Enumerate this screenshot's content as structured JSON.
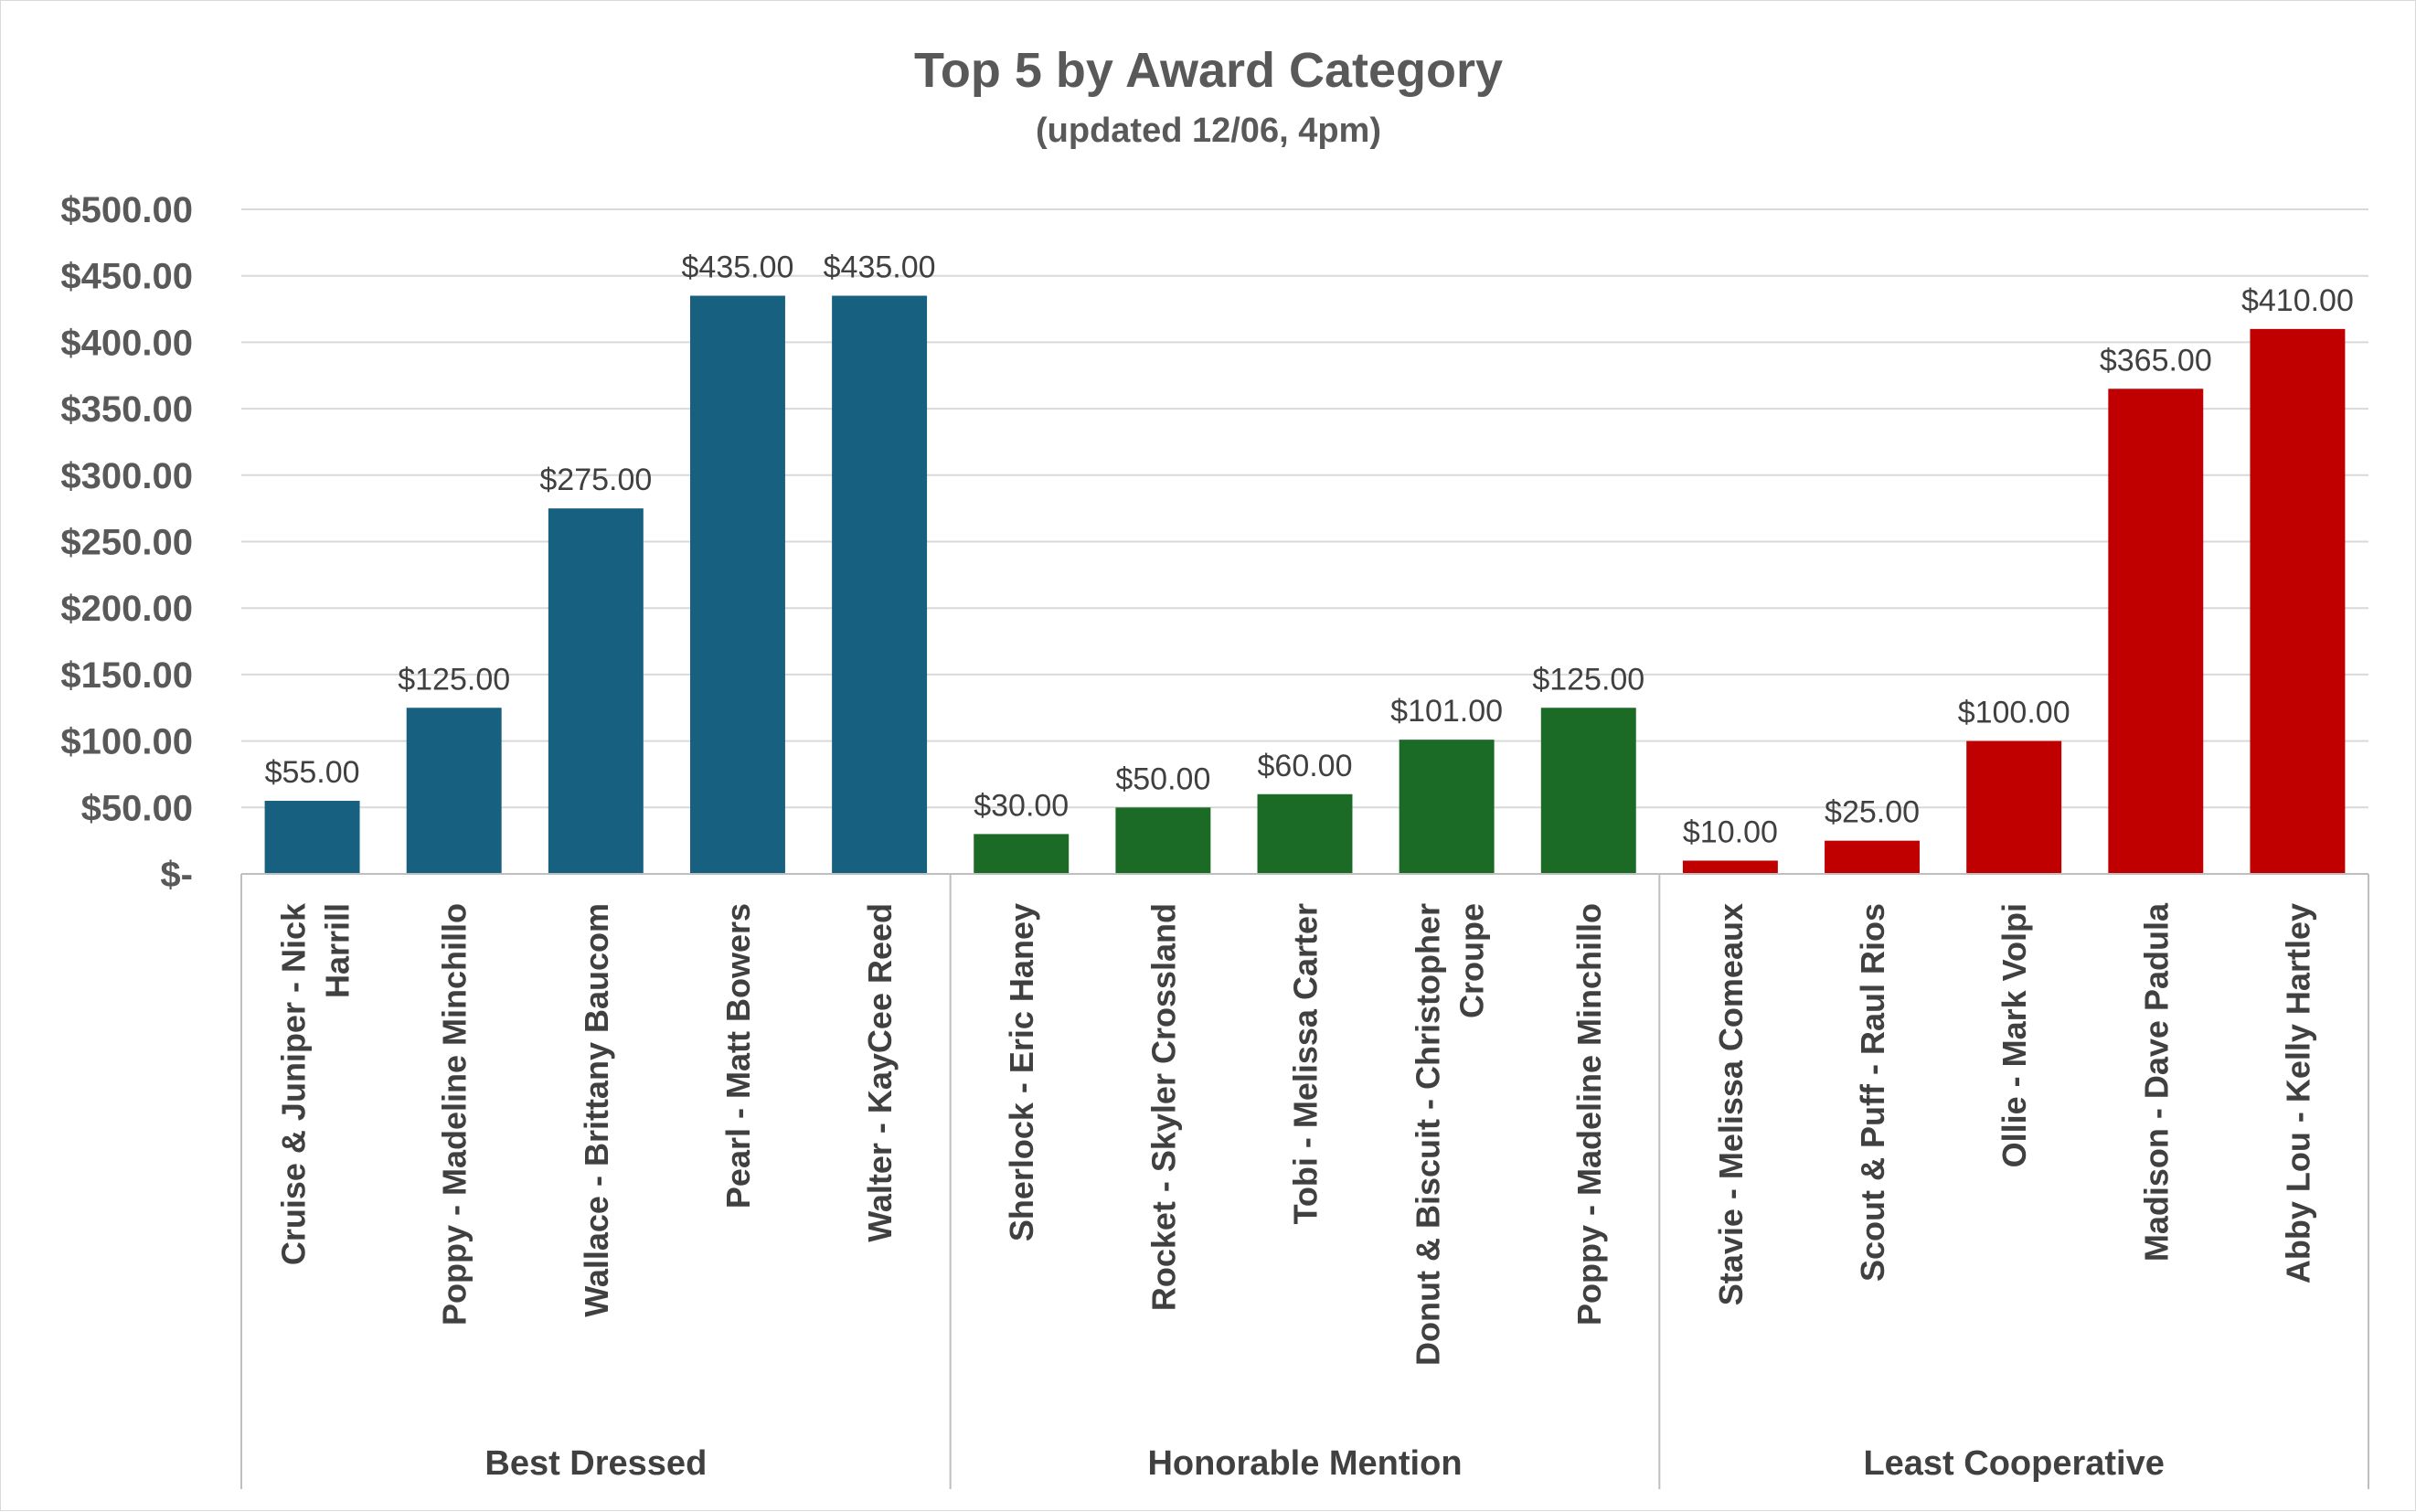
{
  "chart_data": {
    "type": "bar",
    "title": "Top 5 by Award Category",
    "subtitle": "(updated 12/06, 4pm)",
    "ylim": [
      0,
      500
    ],
    "yticks": [
      0,
      50,
      100,
      150,
      200,
      250,
      300,
      350,
      400,
      450,
      500
    ],
    "ytick_labels": [
      "$-",
      "$50.00",
      "$100.00",
      "$150.00",
      "$200.00",
      "$250.00",
      "$300.00",
      "$350.00",
      "$400.00",
      "$450.00",
      "$500.00"
    ],
    "grid": true,
    "legend": "none",
    "groups": [
      {
        "name": "Best Dressed",
        "color": "#17607f",
        "categories": [
          "Cruise & Juniper - Nick Harrill",
          "Poppy - Madeline Minchillo",
          "Wallace - Brittany Baucom",
          "Pearl - Matt Bowers",
          "Walter - KayCee Reed"
        ],
        "values": [
          55,
          125,
          275,
          435,
          435
        ],
        "labels": [
          "$55.00",
          "$125.00",
          "$275.00",
          "$435.00",
          "$435.00"
        ]
      },
      {
        "name": "Honorable Mention",
        "color": "#1b6b27",
        "categories": [
          "Sherlock - Eric Haney",
          "Rocket - Skyler Crossland",
          "Tobi - Melissa Carter",
          "Donut & Biscuit - Christopher Croupe",
          "Poppy - Madeline Minchillo"
        ],
        "values": [
          30,
          50,
          60,
          101,
          125
        ],
        "labels": [
          "$30.00",
          "$50.00",
          "$60.00",
          "$101.00",
          "$125.00"
        ]
      },
      {
        "name": "Least Cooperative",
        "color": "#c00000",
        "categories": [
          "Stavie - Melissa Comeaux",
          "Scout & Puff - Raul Rios",
          "Ollie - Mark Volpi",
          "Madison - Dave Padula",
          "Abby Lou - Kelly Hartley"
        ],
        "values": [
          10,
          25,
          100,
          365,
          410
        ],
        "labels": [
          "$10.00",
          "$25.00",
          "$100.00",
          "$365.00",
          "$410.00"
        ]
      }
    ]
  }
}
